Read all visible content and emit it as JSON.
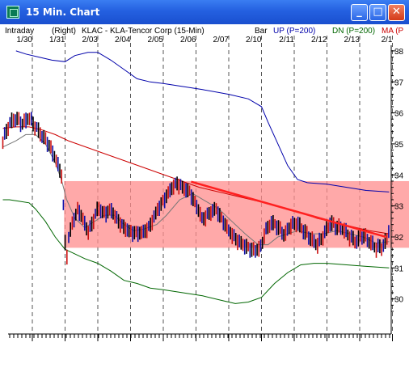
{
  "window": {
    "title": "15 Min. Chart",
    "minimize": "_",
    "maximize": "□",
    "close": "✕"
  },
  "header": {
    "mode": "Intraday",
    "axis_side": "(Right)",
    "symbol": "KLAC - KLA-Tencor Corp (15-Min)",
    "bar": "Bar",
    "up_label": "UP (P=200)",
    "dn_label": "DN (P=200)",
    "ma_label": "MA (P",
    "up_color": "#0000aa",
    "dn_color": "#006600",
    "ma_color": "#cc0000"
  },
  "chart_data": {
    "type": "line",
    "x_ticks": [
      "1/30",
      "1/31",
      "2/03",
      "2/04",
      "2/05",
      "2/06",
      "2/07",
      "2/10",
      "2/11",
      "2/12",
      "2/13",
      "2/1"
    ],
    "y_ticks": [
      "38",
      "37",
      "36",
      "35",
      "34",
      "33",
      "32",
      "31",
      "30"
    ],
    "ylim": [
      29.6,
      38.05
    ],
    "highlight_band": [
      31.65,
      33.8
    ],
    "trendline": [
      [
        4.85,
        33.78
      ],
      [
        10.8,
        32.0
      ]
    ],
    "price": [
      [
        -0.9,
        35.1
      ],
      [
        -0.7,
        35.6
      ],
      [
        -0.5,
        35.8
      ],
      [
        -0.3,
        35.7
      ],
      [
        -0.1,
        35.9
      ],
      [
        0.1,
        35.5
      ],
      [
        0.3,
        35.2
      ],
      [
        0.5,
        35.0
      ],
      [
        0.7,
        34.6
      ],
      [
        0.9,
        34.0
      ],
      [
        1.0,
        31.8
      ],
      [
        1.05,
        31.3
      ],
      [
        1.1,
        31.9
      ],
      [
        1.25,
        32.5
      ],
      [
        1.4,
        32.9
      ],
      [
        1.55,
        32.6
      ],
      [
        1.7,
        32.2
      ],
      [
        1.85,
        32.5
      ],
      [
        2.0,
        32.9
      ],
      [
        2.2,
        32.7
      ],
      [
        2.4,
        32.9
      ],
      [
        2.6,
        32.6
      ],
      [
        2.8,
        32.3
      ],
      [
        3.0,
        32.1
      ],
      [
        3.2,
        32.1
      ],
      [
        3.4,
        32.2
      ],
      [
        3.6,
        32.4
      ],
      [
        3.8,
        32.8
      ],
      [
        4.0,
        33.1
      ],
      [
        4.2,
        33.5
      ],
      [
        4.4,
        33.8
      ],
      [
        4.6,
        33.6
      ],
      [
        4.8,
        33.4
      ],
      [
        5.0,
        33.0
      ],
      [
        5.2,
        32.6
      ],
      [
        5.4,
        32.8
      ],
      [
        5.6,
        32.9
      ],
      [
        5.8,
        32.5
      ],
      [
        6.0,
        32.2
      ],
      [
        6.2,
        32.0
      ],
      [
        6.4,
        31.8
      ],
      [
        6.6,
        31.6
      ],
      [
        6.8,
        31.5
      ],
      [
        7.0,
        31.7
      ],
      [
        7.1,
        32.2
      ],
      [
        7.3,
        32.5
      ],
      [
        7.5,
        32.3
      ],
      [
        7.7,
        32.0
      ],
      [
        7.9,
        32.4
      ],
      [
        8.1,
        32.5
      ],
      [
        8.3,
        32.2
      ],
      [
        8.5,
        31.9
      ],
      [
        8.7,
        31.7
      ],
      [
        8.9,
        32.1
      ],
      [
        9.1,
        32.5
      ],
      [
        9.3,
        32.3
      ],
      [
        9.5,
        32.2
      ],
      [
        9.7,
        32.0
      ],
      [
        9.9,
        31.9
      ],
      [
        10.1,
        32.1
      ],
      [
        10.3,
        31.8
      ],
      [
        10.5,
        31.6
      ],
      [
        10.7,
        31.7
      ],
      [
        10.85,
        32.0
      ],
      [
        10.9,
        32.4
      ]
    ],
    "series": [
      {
        "name": "UP (P=200)",
        "color": "#0000aa",
        "points": [
          [
            -0.5,
            38.0
          ],
          [
            -0.2,
            37.9
          ],
          [
            0.2,
            37.8
          ],
          [
            0.6,
            37.7
          ],
          [
            1.0,
            37.65
          ],
          [
            1.3,
            37.85
          ],
          [
            1.7,
            37.95
          ],
          [
            2.0,
            37.95
          ],
          [
            2.4,
            37.7
          ],
          [
            2.8,
            37.4
          ],
          [
            3.2,
            37.1
          ],
          [
            3.6,
            37.0
          ],
          [
            4.0,
            36.95
          ],
          [
            4.6,
            36.85
          ],
          [
            5.2,
            36.75
          ],
          [
            6.0,
            36.6
          ],
          [
            6.6,
            36.45
          ],
          [
            7.0,
            36.2
          ],
          [
            7.2,
            35.7
          ],
          [
            7.5,
            35.0
          ],
          [
            7.8,
            34.3
          ],
          [
            8.1,
            33.85
          ],
          [
            8.4,
            33.75
          ],
          [
            9.0,
            33.7
          ],
          [
            9.6,
            33.6
          ],
          [
            10.2,
            33.5
          ],
          [
            10.9,
            33.45
          ]
        ]
      },
      {
        "name": "DN (P=200)",
        "color": "#006600",
        "points": [
          [
            -0.9,
            33.2
          ],
          [
            -0.7,
            33.2
          ],
          [
            -0.4,
            33.15
          ],
          [
            -0.1,
            33.1
          ],
          [
            0.1,
            32.9
          ],
          [
            0.4,
            32.5
          ],
          [
            0.7,
            32.0
          ],
          [
            1.0,
            31.6
          ],
          [
            1.2,
            31.5
          ],
          [
            1.6,
            31.3
          ],
          [
            2.0,
            31.15
          ],
          [
            2.4,
            30.9
          ],
          [
            2.8,
            30.6
          ],
          [
            3.2,
            30.5
          ],
          [
            3.6,
            30.35
          ],
          [
            4.0,
            30.3
          ],
          [
            4.6,
            30.2
          ],
          [
            5.2,
            30.1
          ],
          [
            5.8,
            29.95
          ],
          [
            6.2,
            29.85
          ],
          [
            6.6,
            29.9
          ],
          [
            7.0,
            30.05
          ],
          [
            7.4,
            30.5
          ],
          [
            7.8,
            30.85
          ],
          [
            8.2,
            31.1
          ],
          [
            8.6,
            31.15
          ],
          [
            9.0,
            31.15
          ],
          [
            9.6,
            31.1
          ],
          [
            10.2,
            31.05
          ],
          [
            10.9,
            31.0
          ]
        ]
      },
      {
        "name": "MA (P",
        "color": "#cc0000",
        "points": [
          [
            -0.9,
            35.5
          ],
          [
            -0.5,
            35.55
          ],
          [
            -0.1,
            35.55
          ],
          [
            0.3,
            35.45
          ],
          [
            0.7,
            35.3
          ],
          [
            1.1,
            35.1
          ],
          [
            1.5,
            34.95
          ],
          [
            1.9,
            34.8
          ],
          [
            2.3,
            34.65
          ],
          [
            2.7,
            34.5
          ],
          [
            3.1,
            34.35
          ],
          [
            3.5,
            34.2
          ],
          [
            3.9,
            34.05
          ],
          [
            4.3,
            33.9
          ],
          [
            4.7,
            33.75
          ],
          [
            5.1,
            33.6
          ],
          [
            5.5,
            33.5
          ],
          [
            5.9,
            33.4
          ],
          [
            6.3,
            33.3
          ],
          [
            6.7,
            33.2
          ],
          [
            7.1,
            33.1
          ],
          [
            7.5,
            32.98
          ],
          [
            7.9,
            32.85
          ],
          [
            8.3,
            32.75
          ],
          [
            8.7,
            32.6
          ],
          [
            9.1,
            32.5
          ],
          [
            9.5,
            32.4
          ],
          [
            9.9,
            32.3
          ],
          [
            10.3,
            32.2
          ],
          [
            10.9,
            32.1
          ]
        ]
      },
      {
        "name": "",
        "color": "#777777",
        "points": [
          [
            -0.9,
            34.9
          ],
          [
            -0.5,
            35.1
          ],
          [
            -0.2,
            35.3
          ],
          [
            0.1,
            35.3
          ],
          [
            0.4,
            35.0
          ],
          [
            0.7,
            34.4
          ],
          [
            0.9,
            33.8
          ],
          [
            1.05,
            33.2
          ],
          [
            1.3,
            32.6
          ],
          [
            1.6,
            32.3
          ],
          [
            1.9,
            32.5
          ],
          [
            2.2,
            32.7
          ],
          [
            2.5,
            32.7
          ],
          [
            2.8,
            32.4
          ],
          [
            3.1,
            32.2
          ],
          [
            3.4,
            32.25
          ],
          [
            3.8,
            32.4
          ],
          [
            4.1,
            32.7
          ],
          [
            4.5,
            33.2
          ],
          [
            4.9,
            33.4
          ],
          [
            5.3,
            33.15
          ],
          [
            5.7,
            32.9
          ],
          [
            6.1,
            32.5
          ],
          [
            6.5,
            32.1
          ],
          [
            6.9,
            31.75
          ],
          [
            7.2,
            31.75
          ],
          [
            7.5,
            32.0
          ],
          [
            7.8,
            32.1
          ],
          [
            8.1,
            32.2
          ],
          [
            8.5,
            32.1
          ],
          [
            8.9,
            32.1
          ],
          [
            9.3,
            32.2
          ],
          [
            9.7,
            32.1
          ],
          [
            10.1,
            32.0
          ],
          [
            10.5,
            31.8
          ],
          [
            10.9,
            31.85
          ]
        ]
      }
    ]
  }
}
